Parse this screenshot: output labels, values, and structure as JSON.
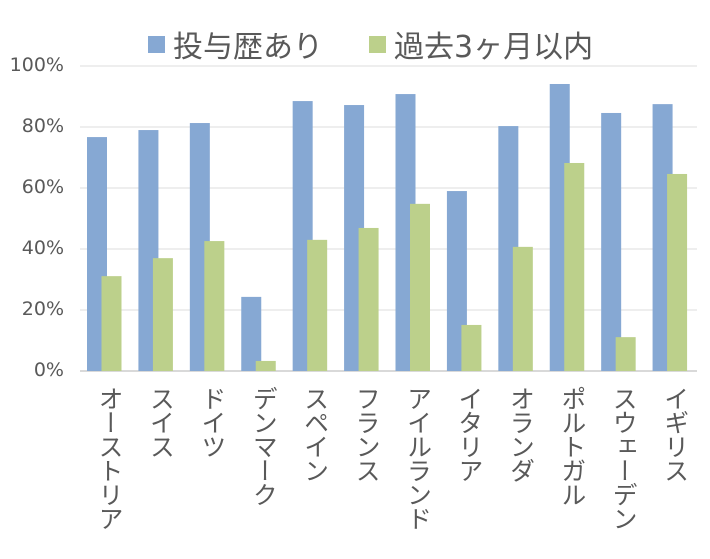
{
  "chart_data": {
    "type": "bar",
    "title": "",
    "xlabel": "",
    "ylabel": "",
    "ylim": [
      0,
      100
    ],
    "yticks": [
      "0%",
      "20%",
      "40%",
      "60%",
      "80%",
      "100%"
    ],
    "grid": true,
    "legend_position": "top",
    "categories": [
      "オーストリア",
      "スイス",
      "ドイツ",
      "デンマーク",
      "スペイン",
      "フランス",
      "アイルランド",
      "イタリア",
      "オランダ",
      "ポルトガル",
      "スウェーデン",
      "イギリス"
    ],
    "series": [
      {
        "name": "投与歴あり",
        "color": "#86A8D3",
        "values": [
          76.7,
          79,
          81.3,
          24.3,
          88.5,
          87.2,
          90.8,
          59,
          80.3,
          94.1,
          84.6,
          87.5
        ]
      },
      {
        "name": "過去3ヶ月以内",
        "color": "#BCD08B",
        "values": [
          31.1,
          37,
          42.6,
          3.3,
          43,
          46.9,
          54.8,
          15.1,
          40.7,
          68.2,
          11.1,
          64.6
        ]
      }
    ]
  }
}
